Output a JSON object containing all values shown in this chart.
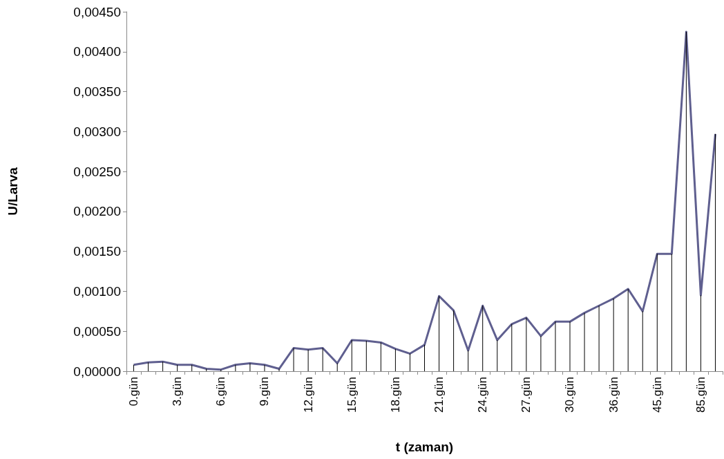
{
  "chart_data": {
    "type": "line",
    "xlabel": "t (zaman)",
    "ylabel": "U/Larva",
    "categories": [
      "0.gün",
      null,
      null,
      "3.gün",
      null,
      null,
      "6.gün",
      null,
      null,
      "9.gün",
      null,
      null,
      "12.gün",
      null,
      null,
      "15.gün",
      null,
      null,
      "18.gün",
      null,
      null,
      "21.gün",
      null,
      null,
      "24.gün",
      null,
      null,
      "27.gün",
      null,
      null,
      "30.gün",
      null,
      null,
      "36.gün",
      null,
      null,
      "45.gün",
      null,
      null,
      "85.gün",
      null
    ],
    "series": [
      {
        "type": "bar",
        "color": "#000000",
        "values": [
          8e-05,
          0.00011,
          0.00012,
          8e-05,
          8e-05,
          3e-05,
          2e-05,
          8e-05,
          0.0001,
          8e-05,
          3e-05,
          0.00029,
          0.00027,
          0.00029,
          0.0001,
          0.00039,
          0.00038,
          0.00036,
          0.00028,
          0.00022,
          0.00033,
          0.00094,
          0.00076,
          0.00026,
          0.00082,
          0.00039,
          0.00059,
          0.00067,
          0.00044,
          0.00062,
          0.00062,
          0.00073,
          0.00082,
          0.00091,
          0.00103,
          0.00075,
          0.00147,
          0.00147,
          0.00425,
          0.00095,
          0.00297
        ]
      },
      {
        "color": "#5f5f8f",
        "values": [
          8e-05,
          0.00011,
          0.00012,
          8e-05,
          8e-05,
          3e-05,
          2e-05,
          8e-05,
          0.0001,
          8e-05,
          3e-05,
          0.00029,
          0.00027,
          0.00029,
          0.0001,
          0.00039,
          0.00038,
          0.00036,
          0.00028,
          0.00022,
          0.00033,
          0.00094,
          0.00076,
          0.00026,
          0.00082,
          0.00039,
          0.00059,
          0.00067,
          0.00044,
          0.00062,
          0.00062,
          0.00073,
          0.00082,
          0.00091,
          0.00103,
          0.00075,
          0.00147,
          0.00147,
          0.00425,
          0.00095,
          0.00297
        ]
      }
    ],
    "ylim": [
      0,
      0.0045
    ],
    "yticks": [
      {
        "value": 0,
        "label": "0,00000"
      },
      {
        "value": 0.0005,
        "label": "0,00050"
      },
      {
        "value": 0.001,
        "label": "0,00100"
      },
      {
        "value": 0.0015,
        "label": "0,00150"
      },
      {
        "value": 0.002,
        "label": "0,00200"
      },
      {
        "value": 0.0025,
        "label": "0,00250"
      },
      {
        "value": 0.003,
        "label": "0,00300"
      },
      {
        "value": 0.0035,
        "label": "0,00350"
      },
      {
        "value": 0.004,
        "label": "0,00400"
      },
      {
        "value": 0.0045,
        "label": "0,00450"
      }
    ],
    "grid": false,
    "marker": "none",
    "line_style": "solid"
  }
}
